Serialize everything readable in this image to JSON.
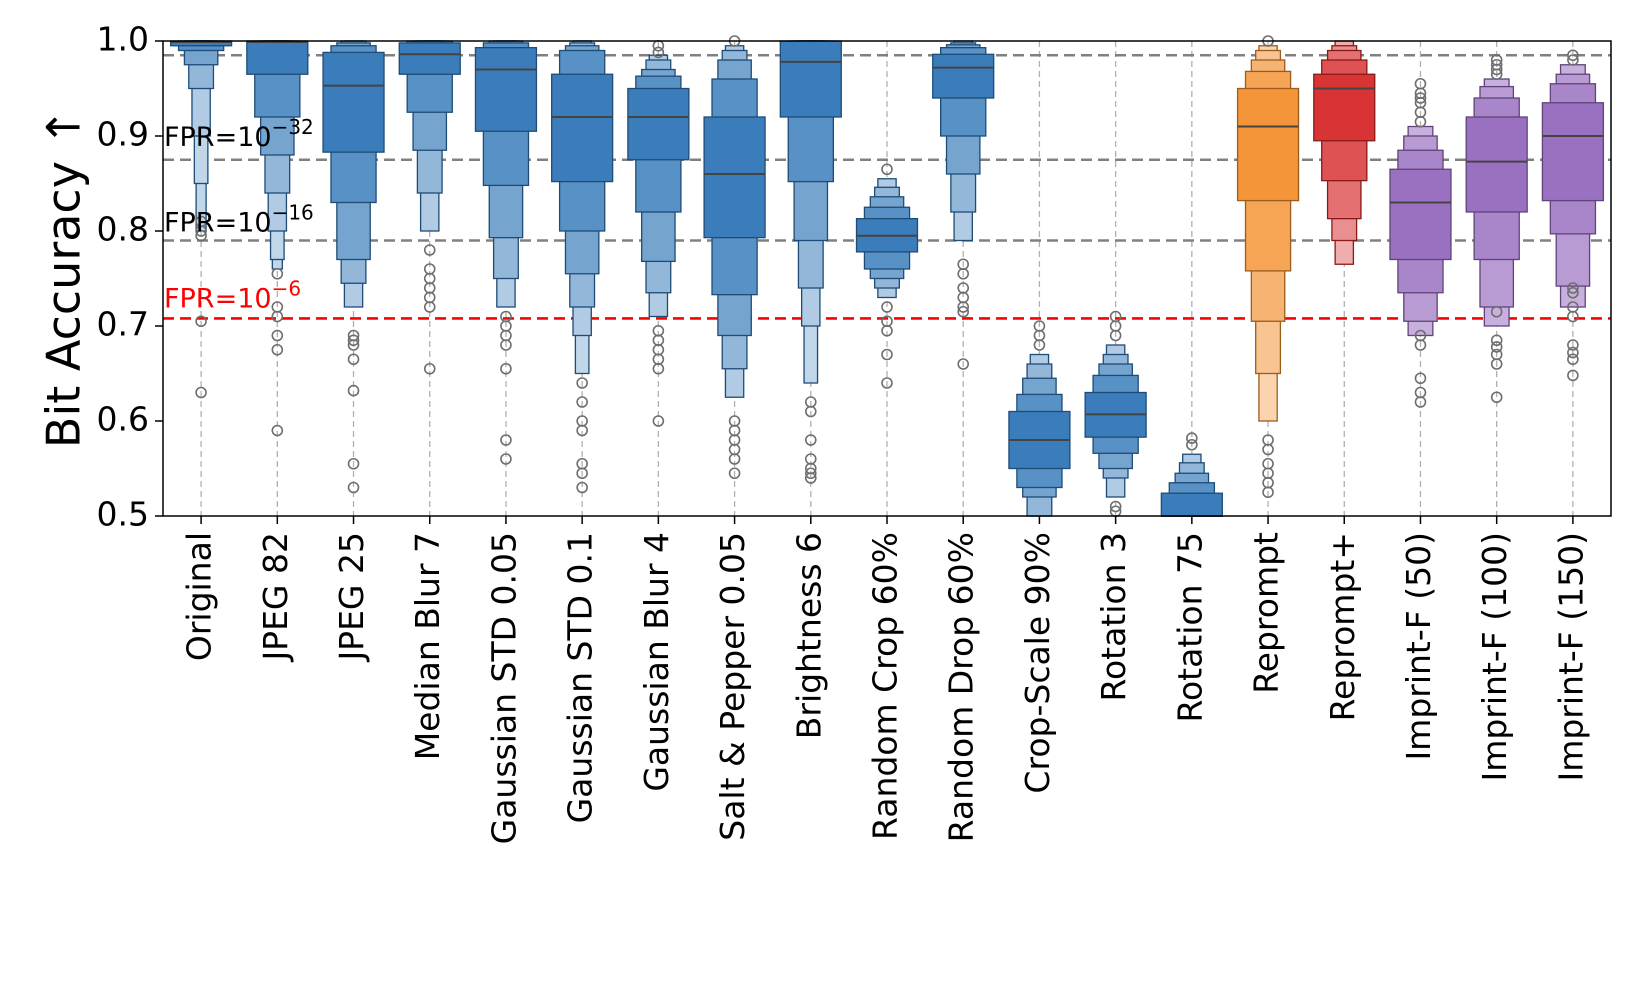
{
  "chart_data": {
    "type": "boxen",
    "title": "",
    "xlabel": "",
    "ylabel": "Bit Accuracy ↑",
    "ylim": [
      0.5,
      1.0
    ],
    "yticks": [
      "0.5",
      "0.6",
      "0.7",
      "0.8",
      "0.9",
      "1.0"
    ],
    "grid": "vertical-dashed",
    "thresholds": [
      {
        "base": "FPR=10",
        "exp": "−32",
        "y": 0.875,
        "color": "#808080",
        "label_y": 0.9,
        "label_color": "#000000"
      },
      {
        "base": "FPR=10",
        "exp": "−16",
        "y": 0.79,
        "color": "#808080",
        "label_y": 0.81,
        "label_color": "#000000"
      },
      {
        "base": "FPR=10",
        "exp": "−6",
        "y": 0.708,
        "color": "#ff0000",
        "label_y": 0.73,
        "label_color": "#ff0000"
      },
      {
        "base": "",
        "exp": "",
        "y": 0.985,
        "color": "#808080",
        "label_y": null,
        "label_color": "#000000"
      }
    ],
    "categories": [
      {
        "name": "Original",
        "color": "#2e75b6",
        "median": 0.999,
        "levels": [
          [
            0.995,
            1.0
          ],
          [
            0.99,
            1.0
          ],
          [
            0.975,
            1.0
          ],
          [
            0.95,
            1.0
          ],
          [
            0.9,
            1.0
          ],
          [
            0.85,
            1.0
          ],
          [
            0.8,
            1.0
          ]
        ],
        "outliers": [
          0.795,
          0.8,
          0.81,
          0.705,
          0.63
        ]
      },
      {
        "name": "JPEG 82",
        "color": "#2e75b6",
        "median": 0.999,
        "levels": [
          [
            0.965,
            1.0
          ],
          [
            0.92,
            1.0
          ],
          [
            0.88,
            1.0
          ],
          [
            0.84,
            1.0
          ],
          [
            0.8,
            1.0
          ],
          [
            0.77,
            1.0
          ],
          [
            0.76,
            1.0
          ]
        ],
        "outliers": [
          0.755,
          0.72,
          0.71,
          0.69,
          0.675,
          0.59
        ]
      },
      {
        "name": "JPEG 25",
        "color": "#2e75b6",
        "median": 0.953,
        "levels": [
          [
            0.883,
            0.988
          ],
          [
            0.83,
            0.995
          ],
          [
            0.77,
            0.998
          ],
          [
            0.745,
            1.0
          ],
          [
            0.72,
            1.0
          ]
        ],
        "outliers": [
          0.69,
          0.685,
          0.68,
          0.665,
          0.632,
          0.555,
          0.53
        ]
      },
      {
        "name": "Median Blur 7",
        "color": "#2e75b6",
        "median": 0.986,
        "levels": [
          [
            0.965,
            0.998
          ],
          [
            0.925,
            1.0
          ],
          [
            0.885,
            1.0
          ],
          [
            0.84,
            1.0
          ],
          [
            0.8,
            1.0
          ]
        ],
        "outliers": [
          0.78,
          0.76,
          0.75,
          0.74,
          0.73,
          0.72,
          0.655
        ]
      },
      {
        "name": "Gaussian STD 0.05",
        "color": "#2e75b6",
        "median": 0.97,
        "levels": [
          [
            0.905,
            0.993
          ],
          [
            0.848,
            0.998
          ],
          [
            0.793,
            1.0
          ],
          [
            0.75,
            1.0
          ],
          [
            0.72,
            1.0
          ]
        ],
        "outliers": [
          0.71,
          0.7,
          0.69,
          0.68,
          0.655,
          0.58,
          0.56
        ]
      },
      {
        "name": "Gaussian STD 0.1",
        "color": "#2e75b6",
        "median": 0.92,
        "levels": [
          [
            0.852,
            0.965
          ],
          [
            0.8,
            0.99
          ],
          [
            0.755,
            0.995
          ],
          [
            0.72,
            0.998
          ],
          [
            0.69,
            1.0
          ],
          [
            0.65,
            1.0
          ]
        ],
        "outliers": [
          0.64,
          0.62,
          0.6,
          0.59,
          0.555,
          0.545,
          0.53
        ]
      },
      {
        "name": "Gaussian Blur 4",
        "color": "#2e75b6",
        "median": 0.92,
        "levels": [
          [
            0.875,
            0.95
          ],
          [
            0.82,
            0.963
          ],
          [
            0.768,
            0.97
          ],
          [
            0.735,
            0.98
          ],
          [
            0.71,
            0.985
          ]
        ],
        "outliers": [
          0.995,
          0.988,
          0.695,
          0.685,
          0.675,
          0.665,
          0.655,
          0.6
        ]
      },
      {
        "name": "Salt & Pepper 0.05",
        "color": "#2e75b6",
        "median": 0.86,
        "levels": [
          [
            0.793,
            0.92
          ],
          [
            0.733,
            0.96
          ],
          [
            0.69,
            0.98
          ],
          [
            0.655,
            0.99
          ],
          [
            0.625,
            0.995
          ]
        ],
        "outliers": [
          1.0,
          0.6,
          0.59,
          0.58,
          0.57,
          0.56,
          0.545
        ]
      },
      {
        "name": "Brightness 6",
        "color": "#2e75b6",
        "median": 0.978,
        "levels": [
          [
            0.92,
            1.0
          ],
          [
            0.852,
            1.0
          ],
          [
            0.79,
            1.0
          ],
          [
            0.74,
            1.0
          ],
          [
            0.7,
            1.0
          ],
          [
            0.64,
            1.0
          ]
        ],
        "outliers": [
          0.62,
          0.61,
          0.58,
          0.56,
          0.55,
          0.545,
          0.54
        ]
      },
      {
        "name": "Random Crop 60%",
        "color": "#2e75b6",
        "median": 0.795,
        "levels": [
          [
            0.778,
            0.813
          ],
          [
            0.76,
            0.825
          ],
          [
            0.75,
            0.836
          ],
          [
            0.74,
            0.846
          ],
          [
            0.73,
            0.855
          ]
        ],
        "outliers": [
          0.865,
          0.72,
          0.705,
          0.695,
          0.67,
          0.64
        ]
      },
      {
        "name": "Random Drop 60%",
        "color": "#2e75b6",
        "median": 0.972,
        "levels": [
          [
            0.94,
            0.986
          ],
          [
            0.9,
            0.993
          ],
          [
            0.86,
            0.996
          ],
          [
            0.82,
            0.998
          ],
          [
            0.79,
            1.0
          ]
        ],
        "outliers": [
          0.765,
          0.755,
          0.74,
          0.73,
          0.72,
          0.715,
          0.66
        ]
      },
      {
        "name": "Crop-Scale 90%",
        "color": "#2e75b6",
        "median": 0.58,
        "levels": [
          [
            0.55,
            0.61
          ],
          [
            0.53,
            0.628
          ],
          [
            0.52,
            0.645
          ],
          [
            0.5,
            0.66
          ],
          [
            0.5,
            0.67
          ]
        ],
        "outliers": [
          0.68,
          0.69,
          0.7
        ]
      },
      {
        "name": "Rotation 3",
        "color": "#2e75b6",
        "median": 0.607,
        "levels": [
          [
            0.583,
            0.63
          ],
          [
            0.566,
            0.648
          ],
          [
            0.55,
            0.66
          ],
          [
            0.54,
            0.67
          ],
          [
            0.52,
            0.68
          ]
        ],
        "outliers": [
          0.69,
          0.7,
          0.71,
          0.51,
          0.505
        ]
      },
      {
        "name": "Rotation 75",
        "color": "#2e75b6",
        "median": 0.5,
        "levels": [
          [
            0.5,
            0.524
          ],
          [
            0.5,
            0.535
          ],
          [
            0.5,
            0.545
          ],
          [
            0.5,
            0.556
          ],
          [
            0.5,
            0.565
          ]
        ],
        "outliers": [
          0.575,
          0.582
        ]
      },
      {
        "name": "Reprompt",
        "color": "#f28e2b",
        "median": 0.91,
        "levels": [
          [
            0.832,
            0.95
          ],
          [
            0.758,
            0.968
          ],
          [
            0.705,
            0.98
          ],
          [
            0.65,
            0.99
          ],
          [
            0.6,
            0.995
          ]
        ],
        "outliers": [
          1.0,
          0.58,
          0.57,
          0.555,
          0.545,
          0.535,
          0.525
        ]
      },
      {
        "name": "Reprompt+",
        "color": "#d62728",
        "median": 0.95,
        "levels": [
          [
            0.895,
            0.965
          ],
          [
            0.853,
            0.98
          ],
          [
            0.813,
            0.99
          ],
          [
            0.79,
            0.995
          ],
          [
            0.765,
            1.0
          ]
        ],
        "outliers": []
      },
      {
        "name": "Imprint-F (50)",
        "color": "#9467bd",
        "median": 0.83,
        "levels": [
          [
            0.77,
            0.865
          ],
          [
            0.735,
            0.885
          ],
          [
            0.705,
            0.9
          ],
          [
            0.69,
            0.91
          ]
        ],
        "outliers": [
          0.955,
          0.945,
          0.94,
          0.935,
          0.925,
          0.915,
          0.69,
          0.68,
          0.645,
          0.63,
          0.62
        ]
      },
      {
        "name": "Imprint-F (100)",
        "color": "#9467bd",
        "median": 0.873,
        "levels": [
          [
            0.82,
            0.92
          ],
          [
            0.77,
            0.94
          ],
          [
            0.72,
            0.952
          ],
          [
            0.7,
            0.96
          ]
        ],
        "outliers": [
          0.98,
          0.975,
          0.97,
          0.965,
          0.715,
          0.685,
          0.678,
          0.67,
          0.66,
          0.625
        ]
      },
      {
        "name": "Imprint-F (150)",
        "color": "#9467bd",
        "median": 0.9,
        "levels": [
          [
            0.832,
            0.935
          ],
          [
            0.797,
            0.955
          ],
          [
            0.742,
            0.965
          ],
          [
            0.72,
            0.975
          ]
        ],
        "outliers": [
          0.985,
          0.98,
          0.74,
          0.735,
          0.72,
          0.71,
          0.68,
          0.672,
          0.665,
          0.648
        ]
      }
    ]
  }
}
